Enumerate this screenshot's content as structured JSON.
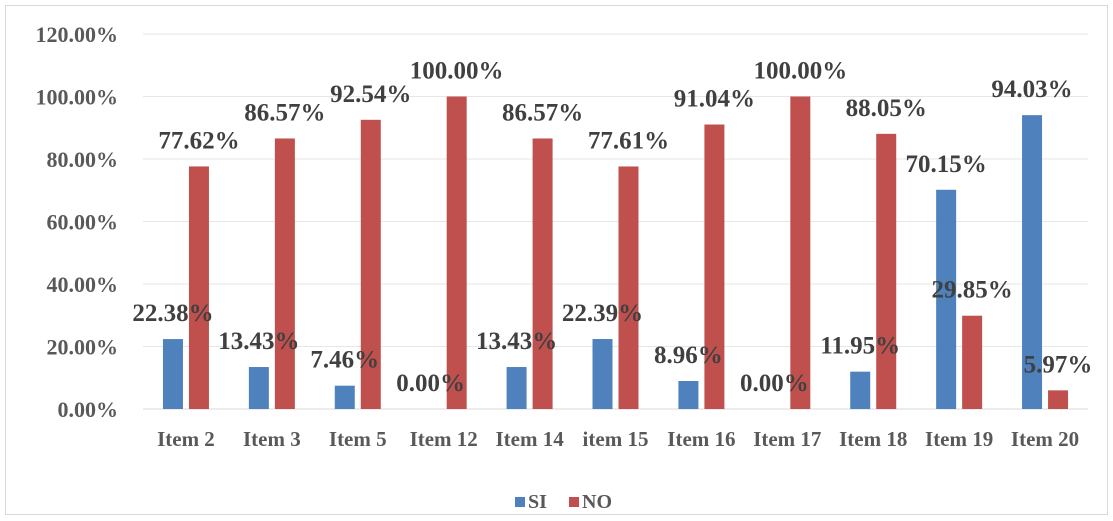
{
  "chart_data": {
    "type": "bar",
    "categories": [
      "Item 2",
      "Item 3",
      "Item 5",
      "Item 12",
      "Item 14",
      "item 15",
      "Item 16",
      "Item 17",
      "Item 18",
      "Item 19",
      "Item 20"
    ],
    "series": [
      {
        "name": "SI",
        "color": "#4f81bd",
        "values": [
          22.38,
          13.43,
          7.46,
          0.0,
          13.43,
          22.39,
          8.96,
          0.0,
          11.95,
          70.15,
          94.03
        ],
        "labels": [
          "22.38%",
          "13.43%",
          "7.46%",
          "0.00%",
          "13.43%",
          "22.39%",
          "8.96%",
          "0.00%",
          "11.95%",
          "70.15%",
          "94.03%"
        ]
      },
      {
        "name": "NO",
        "color": "#c0504d",
        "values": [
          77.62,
          86.57,
          92.54,
          100.0,
          86.57,
          77.61,
          91.04,
          100.0,
          88.05,
          29.85,
          5.97
        ],
        "labels": [
          "77.62%",
          "86.57%",
          "92.54%",
          "100.00%",
          "86.57%",
          "77.61%",
          "91.04%",
          "100.00%",
          "88.05%",
          "29.85%",
          "5.97%"
        ]
      }
    ],
    "ylim": [
      0,
      120
    ],
    "yticks": [
      "0.00%",
      "20.00%",
      "40.00%",
      "60.00%",
      "80.00%",
      "100.00%",
      "120.00%"
    ],
    "grid": true,
    "legend": "bottom-center"
  }
}
